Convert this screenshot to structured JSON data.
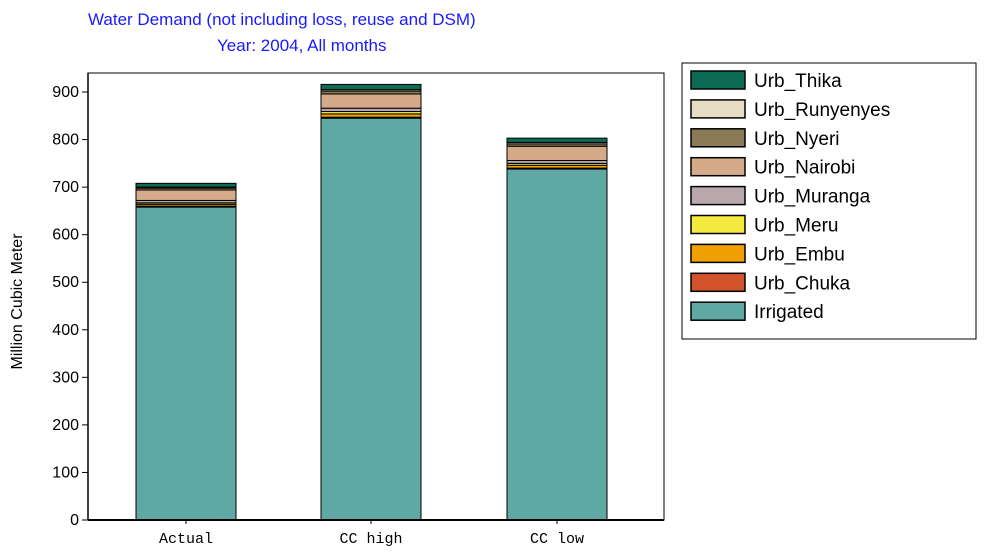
{
  "chart_data": {
    "type": "bar",
    "stacked": true,
    "title": "Water Demand (not including loss, reuse and DSM)",
    "subtitle": "Year: 2004,  All months",
    "ylabel": "Million Cubic Meter",
    "xlabel": "",
    "ylim": [
      0,
      940
    ],
    "yticks": [
      0,
      100,
      200,
      300,
      400,
      500,
      600,
      700,
      800,
      900
    ],
    "grid": false,
    "legend_position": "right",
    "categories": [
      "Actual",
      "CC high",
      "CC low"
    ],
    "series": [
      {
        "name": "Irrigated",
        "color": "#5fa8a3",
        "values": [
          658,
          845,
          738
        ]
      },
      {
        "name": "Urb_Chuka",
        "color": "#d2522a",
        "values": [
          2,
          2,
          2
        ]
      },
      {
        "name": "Urb_Embu",
        "color": "#f0a000",
        "values": [
          4,
          7,
          6
        ]
      },
      {
        "name": "Urb_Meru",
        "color": "#f5ea40",
        "values": [
          3,
          5,
          4
        ]
      },
      {
        "name": "Urb_Muranga",
        "color": "#b8a8ac",
        "values": [
          5,
          7,
          6
        ]
      },
      {
        "name": "Urb_Nairobi",
        "color": "#d4aa88",
        "values": [
          22,
          30,
          30
        ]
      },
      {
        "name": "Urb_Nyeri",
        "color": "#8b7a56",
        "values": [
          4,
          6,
          5
        ]
      },
      {
        "name": "Urb_Runyenyes",
        "color": "#e6dcc4",
        "values": [
          2,
          3,
          3
        ]
      },
      {
        "name": "Urb_Thika",
        "color": "#0c6b55",
        "values": [
          8,
          11,
          9
        ]
      }
    ],
    "legend_order": [
      "Urb_Thika",
      "Urb_Runyenyes",
      "Urb_Nyeri",
      "Urb_Nairobi",
      "Urb_Muranga",
      "Urb_Meru",
      "Urb_Embu",
      "Urb_Chuka",
      "Irrigated"
    ]
  }
}
